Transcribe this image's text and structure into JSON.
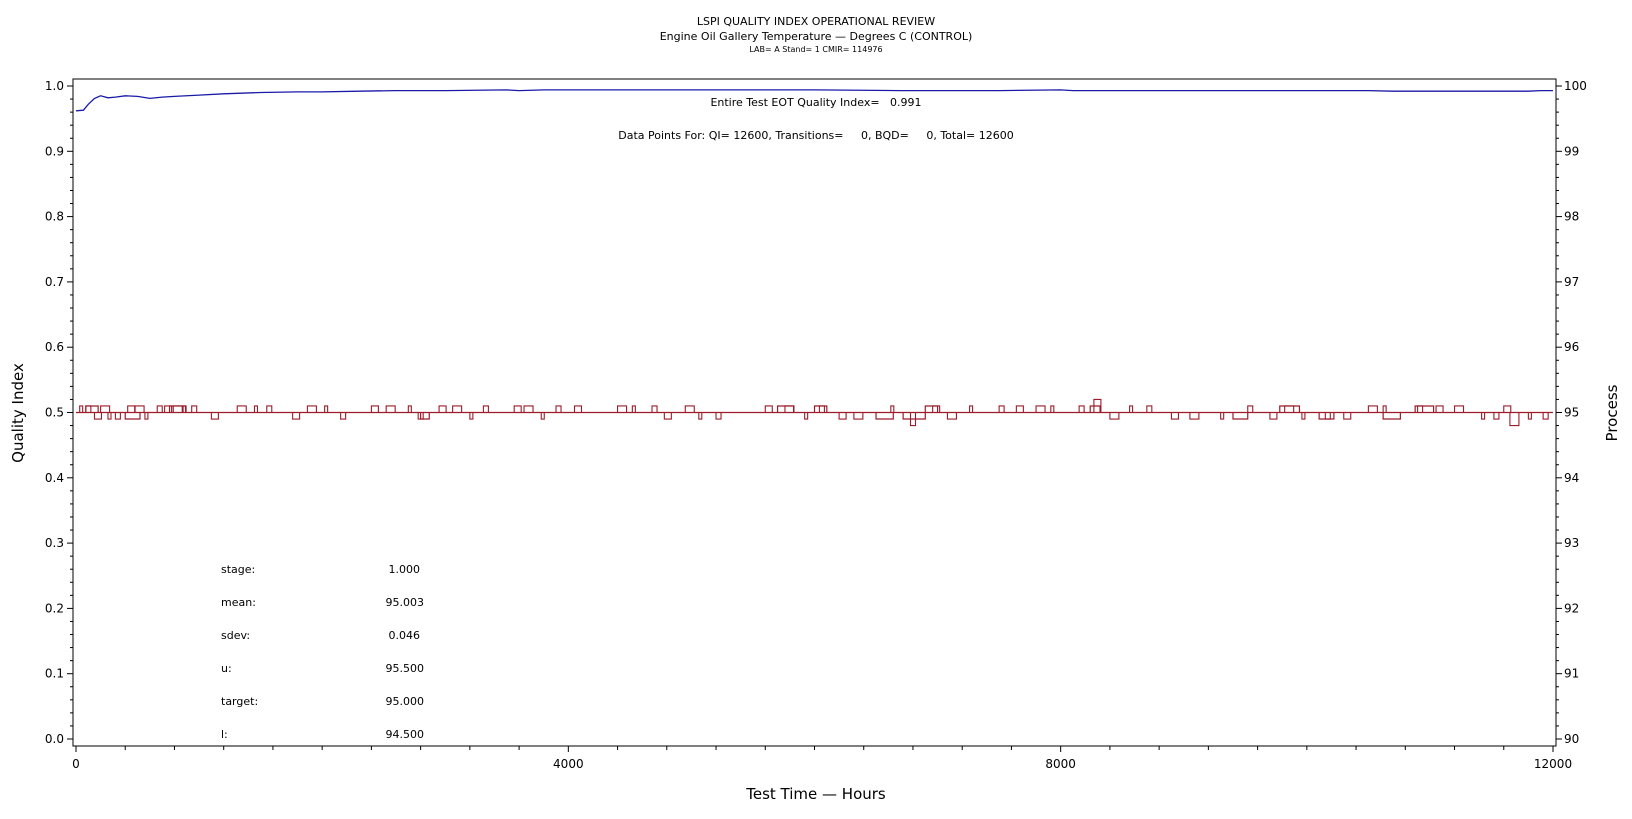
{
  "titles": {
    "line1": "LSPI QUALITY INDEX OPERATIONAL REVIEW",
    "line2": "Engine Oil Gallery Temperature — Degrees C (CONTROL)",
    "line3": "LAB= A Stand= 1 CMIR= 114976"
  },
  "annotations": {
    "qi": "Entire Test EOT Quality Index=   0.991",
    "points": "Data Points For: QI= 12600, Transitions=     0, BQD=     0, Total= 12600"
  },
  "stats": [
    {
      "label": "stage:",
      "value": "1.000"
    },
    {
      "label": "mean:",
      "value": "95.003"
    },
    {
      "label": "sdev:",
      "value": "0.046"
    },
    {
      "label": "u:",
      "value": "95.500"
    },
    {
      "label": "target:",
      "value": "95.000"
    },
    {
      "label": "l:",
      "value": "94.500"
    }
  ],
  "chart_data": {
    "type": "line",
    "xlabel": "Test Time — Hours",
    "ylabel": "Quality Index",
    "y2label": "Process",
    "xlim": [
      0,
      12000
    ],
    "ylim": [
      0.0,
      1.0
    ],
    "y2lim": [
      90,
      100
    ],
    "x_ticks": [
      0,
      4000,
      8000,
      12000
    ],
    "y_ticks": [
      "0.0",
      "0.1",
      "0.2",
      "0.3",
      "0.4",
      "0.5",
      "0.6",
      "0.7",
      "0.8",
      "0.9",
      "1.0"
    ],
    "y2_ticks": [
      "90",
      "91",
      "92",
      "93",
      "94",
      "95",
      "96",
      "97",
      "98",
      "99",
      "100"
    ],
    "grid": false,
    "series": [
      {
        "axis": "left",
        "color": "#1a1aa8",
        "x": [
          0,
          60,
          100,
          150,
          200,
          260,
          320,
          400,
          500,
          600,
          700,
          800,
          1000,
          1200,
          1500,
          1800,
          2000,
          2300,
          2600,
          3000,
          3500,
          3600,
          3800,
          4000,
          5000,
          6000,
          6700,
          6800,
          7500,
          8000,
          8100,
          8200,
          9000,
          10000,
          10500,
          10700,
          11000,
          11500,
          11800,
          11900,
          12000
        ],
        "values": [
          0.962,
          0.963,
          0.972,
          0.981,
          0.985,
          0.982,
          0.983,
          0.985,
          0.984,
          0.981,
          0.983,
          0.984,
          0.986,
          0.988,
          0.99,
          0.991,
          0.991,
          0.992,
          0.993,
          0.993,
          0.994,
          0.993,
          0.994,
          0.994,
          0.994,
          0.994,
          0.993,
          0.993,
          0.993,
          0.994,
          0.993,
          0.993,
          0.993,
          0.993,
          0.993,
          0.992,
          0.992,
          0.992,
          0.992,
          0.993,
          0.993
        ]
      },
      {
        "axis": "right",
        "color": "#9b1c2a",
        "baseline": 95.0,
        "upper": 95.1,
        "lower": 94.9,
        "spikes": [
          {
            "x": 30,
            "v": 95.1
          },
          {
            "x": 80,
            "v": 95.1
          },
          {
            "x": 150,
            "v": 94.9
          },
          {
            "x": 200,
            "v": 95.1
          },
          {
            "x": 260,
            "v": 94.9
          },
          {
            "x": 320,
            "v": 94.9
          },
          {
            "x": 420,
            "v": 95.1
          },
          {
            "x": 480,
            "v": 95.1
          },
          {
            "x": 560,
            "v": 94.9
          },
          {
            "x": 660,
            "v": 95.1
          },
          {
            "x": 720,
            "v": 95.1
          },
          {
            "x": 790,
            "v": 95.1
          },
          {
            "x": 870,
            "v": 95.1
          },
          {
            "x": 940,
            "v": 95.1
          },
          {
            "x": 1100,
            "v": 94.9
          },
          {
            "x": 1310,
            "v": 95.1
          },
          {
            "x": 1450,
            "v": 95.1
          },
          {
            "x": 1550,
            "v": 95.1
          },
          {
            "x": 1760,
            "v": 94.9
          },
          {
            "x": 1880,
            "v": 95.1
          },
          {
            "x": 2020,
            "v": 95.1
          },
          {
            "x": 2150,
            "v": 94.9
          },
          {
            "x": 2400,
            "v": 95.1
          },
          {
            "x": 2520,
            "v": 95.1
          },
          {
            "x": 2700,
            "v": 95.1
          },
          {
            "x": 2780,
            "v": 94.9
          },
          {
            "x": 2950,
            "v": 95.1
          },
          {
            "x": 3060,
            "v": 95.1
          },
          {
            "x": 3200,
            "v": 94.9
          },
          {
            "x": 3310,
            "v": 95.1
          },
          {
            "x": 3560,
            "v": 95.1
          },
          {
            "x": 3640,
            "v": 95.1
          },
          {
            "x": 3780,
            "v": 94.9
          },
          {
            "x": 3900,
            "v": 95.1
          },
          {
            "x": 4050,
            "v": 95.1
          },
          {
            "x": 4400,
            "v": 95.1
          },
          {
            "x": 4520,
            "v": 95.1
          },
          {
            "x": 4680,
            "v": 95.1
          },
          {
            "x": 4780,
            "v": 94.9
          },
          {
            "x": 4950,
            "v": 95.1
          },
          {
            "x": 5060,
            "v": 94.9
          },
          {
            "x": 5200,
            "v": 94.9
          },
          {
            "x": 5600,
            "v": 95.1
          },
          {
            "x": 5760,
            "v": 95.1
          },
          {
            "x": 5920,
            "v": 94.9
          },
          {
            "x": 6040,
            "v": 95.1
          },
          {
            "x": 6200,
            "v": 94.9
          },
          {
            "x": 6320,
            "v": 94.9
          },
          {
            "x": 6620,
            "v": 95.1
          },
          {
            "x": 6780,
            "v": 94.8
          },
          {
            "x": 6960,
            "v": 95.1
          },
          {
            "x": 7080,
            "v": 94.9
          },
          {
            "x": 7260,
            "v": 95.1
          },
          {
            "x": 7500,
            "v": 95.1
          },
          {
            "x": 7640,
            "v": 95.1
          },
          {
            "x": 7800,
            "v": 95.1
          },
          {
            "x": 7920,
            "v": 95.1
          },
          {
            "x": 8150,
            "v": 95.1
          },
          {
            "x": 8270,
            "v": 95.2
          },
          {
            "x": 8400,
            "v": 94.9
          },
          {
            "x": 8560,
            "v": 95.1
          },
          {
            "x": 8700,
            "v": 95.1
          },
          {
            "x": 8900,
            "v": 94.9
          },
          {
            "x": 9050,
            "v": 94.9
          },
          {
            "x": 9300,
            "v": 94.9
          },
          {
            "x": 9520,
            "v": 95.1
          },
          {
            "x": 9700,
            "v": 94.9
          },
          {
            "x": 9820,
            "v": 95.1
          },
          {
            "x": 9960,
            "v": 94.9
          },
          {
            "x": 10150,
            "v": 94.9
          },
          {
            "x": 10300,
            "v": 94.9
          },
          {
            "x": 10500,
            "v": 95.1
          },
          {
            "x": 10620,
            "v": 95.1
          },
          {
            "x": 10900,
            "v": 95.1
          },
          {
            "x": 11050,
            "v": 95.1
          },
          {
            "x": 11200,
            "v": 95.1
          },
          {
            "x": 11420,
            "v": 94.9
          },
          {
            "x": 11520,
            "v": 94.9
          },
          {
            "x": 11600,
            "v": 95.1
          },
          {
            "x": 11650,
            "v": 94.8
          },
          {
            "x": 11800,
            "v": 94.9
          },
          {
            "x": 11920,
            "v": 94.9
          }
        ],
        "steps": [
          {
            "x0": 80,
            "x1": 180,
            "v": 95.1
          },
          {
            "x0": 400,
            "x1": 520,
            "v": 94.9
          },
          {
            "x0": 760,
            "x1": 890,
            "v": 95.1
          },
          {
            "x0": 2800,
            "x1": 2870,
            "v": 94.9
          },
          {
            "x0": 5700,
            "x1": 5830,
            "v": 95.1
          },
          {
            "x0": 6000,
            "x1": 6100,
            "v": 95.1
          },
          {
            "x0": 6500,
            "x1": 6640,
            "v": 94.9
          },
          {
            "x0": 6720,
            "x1": 6900,
            "v": 94.9
          },
          {
            "x0": 6900,
            "x1": 7000,
            "v": 95.1
          },
          {
            "x0": 8240,
            "x1": 8320,
            "v": 95.1
          },
          {
            "x0": 9400,
            "x1": 9520,
            "v": 94.9
          },
          {
            "x0": 9780,
            "x1": 9940,
            "v": 95.1
          },
          {
            "x0": 10100,
            "x1": 10220,
            "v": 94.9
          },
          {
            "x0": 10620,
            "x1": 10760,
            "v": 94.9
          },
          {
            "x0": 10880,
            "x1": 11030,
            "v": 95.1
          }
        ]
      }
    ]
  }
}
